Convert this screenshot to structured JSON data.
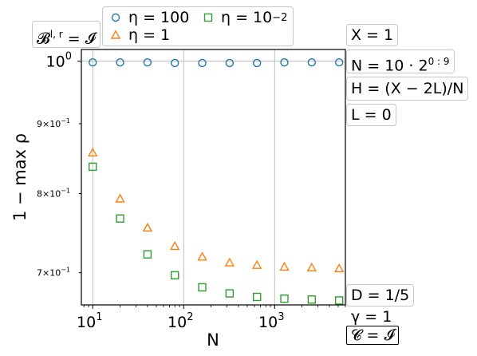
{
  "chart_data": {
    "type": "scatter",
    "xscale": "log",
    "yscale": "log",
    "xlim": [
      7.5,
      6000
    ],
    "ylim": [
      0.663,
      1.02
    ],
    "x": [
      10,
      20,
      40,
      80,
      160,
      320,
      640,
      1280,
      2560,
      5120
    ],
    "xlabel": "N",
    "ylabel": "1 − max ρ",
    "x_ticks": [
      {
        "value": 10,
        "base": "10",
        "exp": "1"
      },
      {
        "value": 100,
        "base": "10",
        "exp": "2"
      },
      {
        "value": 1000,
        "base": "10",
        "exp": "3"
      }
    ],
    "y_ticks": [
      {
        "value": 1.0,
        "base": "10",
        "exp": "0",
        "major": true
      },
      {
        "value": 0.9,
        "mant": "9×10",
        "exp": "−1",
        "major": false
      },
      {
        "value": 0.8,
        "mant": "8×10",
        "exp": "−1",
        "major": false
      },
      {
        "value": 0.7,
        "mant": "7×10",
        "exp": "−1",
        "major": false
      }
    ],
    "grid": true,
    "legend_position": "top",
    "series": [
      {
        "name_base": "η = 100",
        "name_exp": "",
        "marker": "circle",
        "color": "#1f77b4",
        "values": [
          0.998,
          0.998,
          0.998,
          0.997,
          0.997,
          0.997,
          0.997,
          0.998,
          0.998,
          0.998
        ]
      },
      {
        "name_base": "η = 1",
        "name_exp": "",
        "marker": "triangle",
        "color": "#ff7f0e",
        "values": [
          0.857,
          0.793,
          0.755,
          0.732,
          0.719,
          0.712,
          0.709,
          0.707,
          0.706,
          0.705
        ]
      },
      {
        "name_base": "η = 10",
        "name_exp": "−2",
        "marker": "square",
        "color": "#2ca02c",
        "values": [
          0.837,
          0.767,
          0.722,
          0.697,
          0.683,
          0.676,
          0.672,
          0.67,
          0.669,
          0.668
        ]
      }
    ]
  },
  "annotations": {
    "b_label": "𝓑",
    "b_sup": "l, r",
    "b_rest": " = 𝓘",
    "x_param": "X = 1",
    "n_base": "N = 10 · 2",
    "n_sup": "0 : 9",
    "h_param": "H = (X − 2L)/N",
    "l_param": "L = 0",
    "d_param": "D = 1/5",
    "gamma_param": "γ = 1",
    "c_param": "𝓒 = 𝓘"
  }
}
